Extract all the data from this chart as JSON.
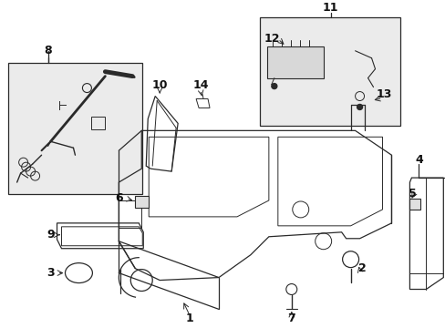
{
  "background_color": "#ffffff",
  "line_color": "#2a2a2a",
  "fill_box": "#ebebeb",
  "figure_width": 4.89,
  "figure_height": 3.6,
  "dpi": 100
}
